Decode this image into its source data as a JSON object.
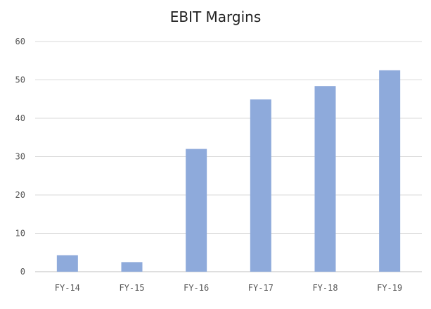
{
  "chart_data": {
    "type": "bar",
    "title": "EBIT Margins",
    "categories": [
      "FY-14",
      "FY-15",
      "FY-16",
      "FY-17",
      "FY-18",
      "FY-19"
    ],
    "values": [
      4.3,
      2.5,
      32,
      44.9,
      48.4,
      52.5
    ],
    "xlabel": "",
    "ylabel": "",
    "ylim": [
      0,
      60
    ],
    "yticks": [
      0,
      10,
      20,
      30,
      40,
      50,
      60
    ],
    "grid": true,
    "legend": "none",
    "colors": {
      "bar": "#8EAADB",
      "grid": "#D9D9D9",
      "axis": "#BFBFBF",
      "text": "#555555"
    }
  }
}
